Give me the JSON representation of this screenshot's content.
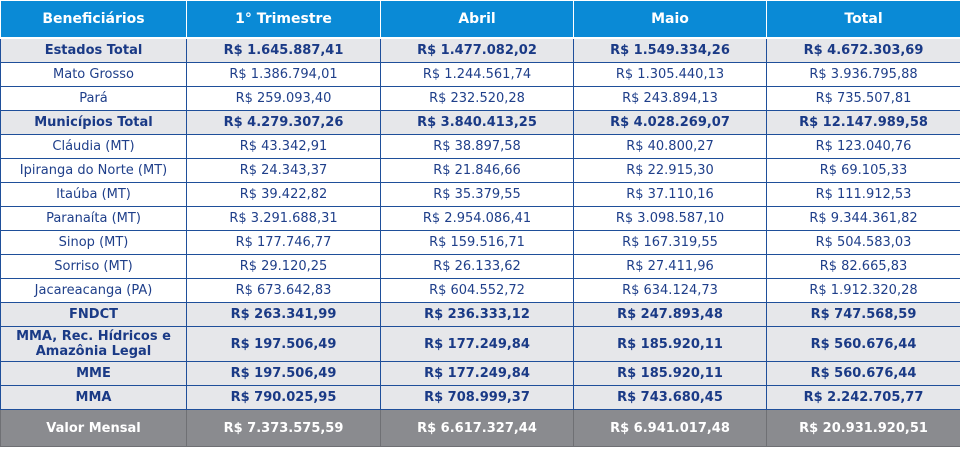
{
  "header": [
    "Beneficiários",
    "1° Trimestre",
    "Abril",
    "Maio",
    "Total"
  ],
  "rows": [
    {
      "type": "total",
      "cells": [
        "Estados Total",
        "R$ 1.645.887,41",
        "R$ 1.477.082,02",
        "R$ 1.549.334,26",
        "R$ 4.672.303,69"
      ]
    },
    {
      "type": "item",
      "cells": [
        "Mato Grosso",
        "R$ 1.386.794,01",
        "R$ 1.244.561,74",
        "R$ 1.305.440,13",
        "R$ 3.936.795,88"
      ]
    },
    {
      "type": "item",
      "cells": [
        "Pará",
        "R$ 259.093,40",
        "R$ 232.520,28",
        "R$ 243.894,13",
        "R$ 735.507,81"
      ]
    },
    {
      "type": "total",
      "cells": [
        "Municípios Total",
        "R$ 4.279.307,26",
        "R$ 3.840.413,25",
        "R$ 4.028.269,07",
        "R$ 12.147.989,58"
      ]
    },
    {
      "type": "item",
      "cells": [
        "Cláudia (MT)",
        "R$ 43.342,91",
        "R$ 38.897,58",
        "R$ 40.800,27",
        "R$ 123.040,76"
      ]
    },
    {
      "type": "item",
      "cells": [
        "Ipiranga do Norte (MT)",
        "R$ 24.343,37",
        "R$ 21.846,66",
        "R$ 22.915,30",
        "R$ 69.105,33"
      ]
    },
    {
      "type": "item",
      "cells": [
        "Itaúba (MT)",
        "R$ 39.422,82",
        "R$ 35.379,55",
        "R$ 37.110,16",
        "R$ 111.912,53"
      ]
    },
    {
      "type": "item",
      "cells": [
        "Paranaíta (MT)",
        "R$ 3.291.688,31",
        "R$ 2.954.086,41",
        "R$ 3.098.587,10",
        "R$ 9.344.361,82"
      ]
    },
    {
      "type": "item",
      "cells": [
        "Sinop (MT)",
        "R$ 177.746,77",
        "R$ 159.516,71",
        "R$ 167.319,55",
        "R$ 504.583,03"
      ]
    },
    {
      "type": "item",
      "cells": [
        "Sorriso (MT)",
        "R$ 29.120,25",
        "R$ 26.133,62",
        "R$ 27.411,96",
        "R$ 82.665,83"
      ]
    },
    {
      "type": "item",
      "cells": [
        "Jacareacanga (PA)",
        "R$ 673.642,83",
        "R$ 604.552,72",
        "R$ 634.124,73",
        "R$ 1.912.320,28"
      ]
    },
    {
      "type": "total",
      "cells": [
        "FNDCT",
        "R$ 263.341,99",
        "R$ 236.333,12",
        "R$ 247.893,48",
        "R$ 747.568,59"
      ]
    },
    {
      "type": "total-tall",
      "cells": [
        "MMA, Rec. Hídricos e Amazônia Legal",
        "R$ 197.506,49",
        "R$ 177.249,84",
        "R$ 185.920,11",
        "R$ 560.676,44"
      ]
    },
    {
      "type": "total",
      "cells": [
        "MME",
        "R$ 197.506,49",
        "R$ 177.249,84",
        "R$ 185.920,11",
        "R$ 560.676,44"
      ]
    },
    {
      "type": "total",
      "cells": [
        "MMA",
        "R$ 790.025,95",
        "R$ 708.999,37",
        "R$ 743.680,45",
        "R$ 2.242.705,77"
      ]
    }
  ],
  "footer": [
    "Valor Mensal",
    "R$ 7.373.575,59",
    "R$ 6.617.327,44",
    "R$ 6.941.017,48",
    "R$ 20.931.920,51"
  ],
  "colors": {
    "header": "#0a8ad6",
    "total_row": "#e6e7ea",
    "footer": "#8a8b8f",
    "text": "#1f3f8a"
  }
}
